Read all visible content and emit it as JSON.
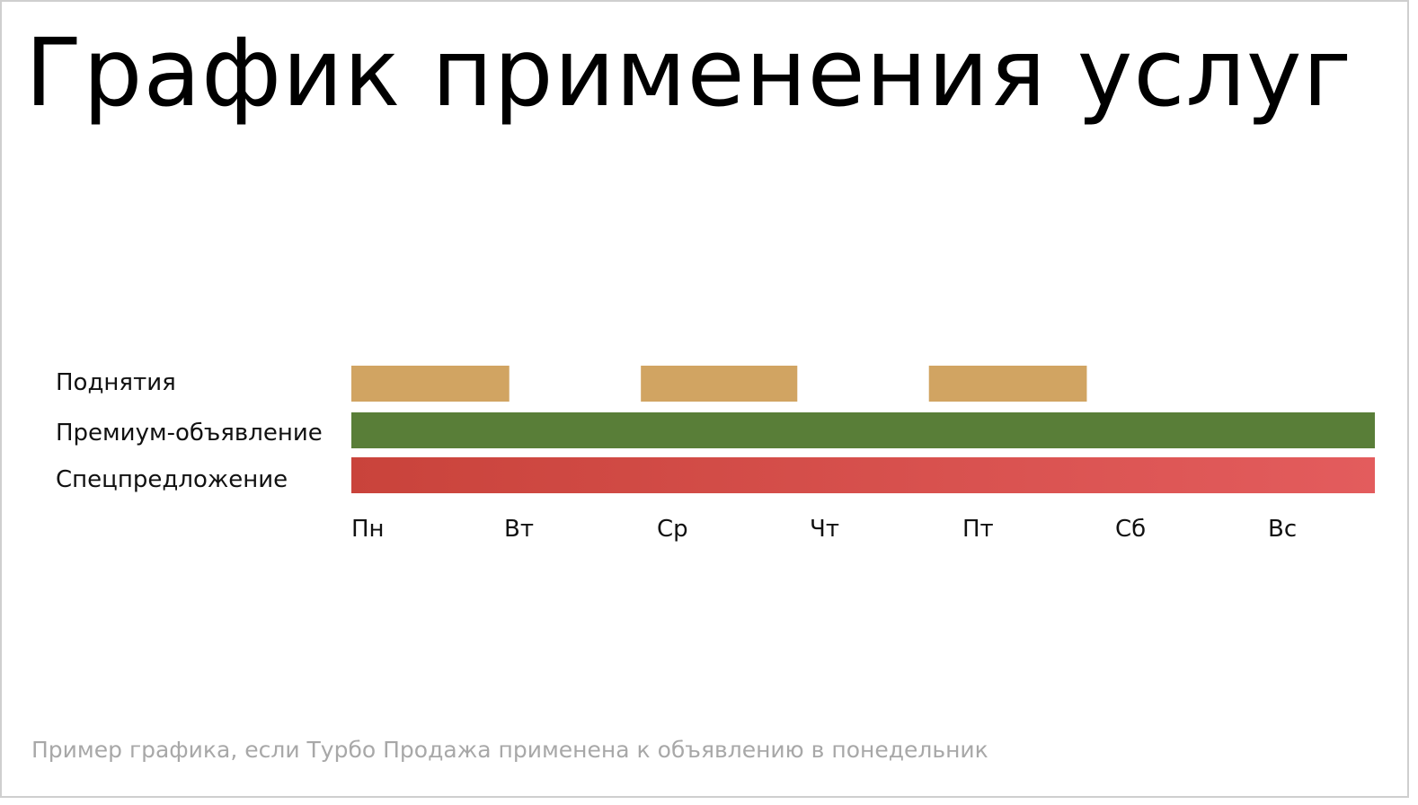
{
  "title": "График применения услуг",
  "footnote": "Пример графика, если Турбо Продажа применена к объявлению в понедельник",
  "chart_data": {
    "type": "gantt",
    "title": "График применения услуг",
    "categories": [
      "Пн",
      "Вт",
      "Ср",
      "Чт",
      "Пт",
      "Сб",
      "Вс"
    ],
    "xlim": [
      0,
      7
    ],
    "grid": false,
    "legend": "none",
    "series": [
      {
        "name": "Поднятия",
        "color": "#d1a462",
        "segments": [
          {
            "start": 0,
            "end": 1.08
          },
          {
            "start": 1.98,
            "end": 3.05
          },
          {
            "start": 3.95,
            "end": 5.03
          }
        ]
      },
      {
        "name": "Премиум-объявление",
        "color": "#597e38",
        "segments": [
          {
            "start": 0,
            "end": 7
          }
        ]
      },
      {
        "name": "Спецпредложение",
        "color_start": "#c9433b",
        "color_end": "#e35c5d",
        "segments": [
          {
            "start": 0,
            "end": 7
          }
        ]
      }
    ]
  }
}
